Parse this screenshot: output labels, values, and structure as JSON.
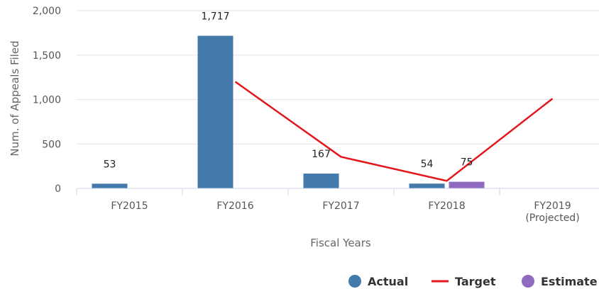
{
  "chart_data": {
    "type": "bar",
    "categories": [
      [
        "FY2015"
      ],
      [
        "FY2016"
      ],
      [
        "FY2017"
      ],
      [
        "FY2018"
      ],
      [
        "FY2019",
        "(Projected)"
      ]
    ],
    "series": [
      {
        "name": "Actual",
        "kind": "bar",
        "color": "#4479ac",
        "values": [
          53,
          1717,
          167,
          54,
          null
        ],
        "labels": [
          "53",
          "1,717",
          "167",
          "54",
          null
        ]
      },
      {
        "name": "Target",
        "kind": "line",
        "color": "#e3161b",
        "values": [
          null,
          1200,
          355,
          85,
          1010
        ]
      },
      {
        "name": "Estimate",
        "kind": "bar",
        "color": "#8f6bbf",
        "values": [
          null,
          null,
          null,
          75,
          null
        ],
        "labels": [
          null,
          null,
          null,
          "75",
          null
        ]
      }
    ],
    "xlabel": "Fiscal Years",
    "ylabel": "Num. of Appeals Filed",
    "ylim": [
      0,
      2000
    ],
    "yticks": [
      0,
      500,
      1000,
      1500,
      2000
    ],
    "ytick_labels": [
      "0",
      "500",
      "1,000",
      "1,500",
      "2,000"
    ],
    "grid": true,
    "legend_position": "bottom-right"
  }
}
